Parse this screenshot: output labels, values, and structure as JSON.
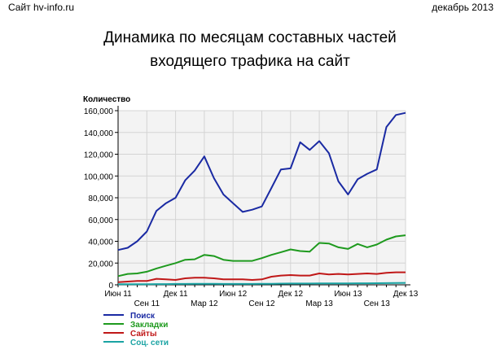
{
  "header": {
    "left": "Сайт hv-info.ru",
    "right": "декабрь 2013"
  },
  "title_lines": [
    "Динамика по месяцам составных частей",
    "входящего трафика на сайт"
  ],
  "chart_data": {
    "type": "line",
    "ylabel": "Количество",
    "ylim": [
      0,
      160000
    ],
    "yticks": [
      0,
      20000,
      40000,
      60000,
      80000,
      100000,
      120000,
      140000,
      160000
    ],
    "ytick_labels": [
      "0",
      "20,000",
      "40,000",
      "60,000",
      "80,000",
      "100,000",
      "120,000",
      "140,000",
      "160,000"
    ],
    "x": [
      "2011-06",
      "2011-07",
      "2011-08",
      "2011-09",
      "2011-10",
      "2011-11",
      "2011-12",
      "2012-01",
      "2012-02",
      "2012-03",
      "2012-04",
      "2012-05",
      "2012-06",
      "2012-07",
      "2012-08",
      "2012-09",
      "2012-10",
      "2012-11",
      "2012-12",
      "2013-01",
      "2013-02",
      "2013-03",
      "2013-04",
      "2013-05",
      "2013-06",
      "2013-07",
      "2013-08",
      "2013-09",
      "2013-10",
      "2013-11",
      "2013-12"
    ],
    "xtick_labels": [
      {
        "label": "Июн 11",
        "row": 0,
        "at": 0
      },
      {
        "label": "Сен 11",
        "row": 1,
        "at": 3
      },
      {
        "label": "Дек 11",
        "row": 0,
        "at": 6
      },
      {
        "label": "Мар 12",
        "row": 1,
        "at": 9
      },
      {
        "label": "Июн 12",
        "row": 0,
        "at": 12
      },
      {
        "label": "Сен 12",
        "row": 1,
        "at": 15
      },
      {
        "label": "Дек 12",
        "row": 0,
        "at": 18
      },
      {
        "label": "Мар 13",
        "row": 1,
        "at": 21
      },
      {
        "label": "Июн 13",
        "row": 0,
        "at": 24
      },
      {
        "label": "Сен 13",
        "row": 1,
        "at": 27
      },
      {
        "label": "Дек 13",
        "row": 0,
        "at": 30
      }
    ],
    "grid": true,
    "legend_position": "bottom-left",
    "series": [
      {
        "name": "Поиск",
        "color": "#1a2aa3",
        "values": [
          32000,
          34000,
          40000,
          49000,
          68000,
          75000,
          80000,
          96000,
          105000,
          118000,
          98000,
          83000,
          75000,
          67000,
          69000,
          72000,
          89000,
          106000,
          107000,
          131000,
          124000,
          132000,
          121000,
          95000,
          83000,
          97000,
          102000,
          106000,
          145000,
          156000,
          158000
        ]
      },
      {
        "name": "Закладки",
        "color": "#1e9a1e",
        "values": [
          8000,
          10000,
          10500,
          12000,
          15000,
          17500,
          20000,
          23000,
          23500,
          27500,
          26500,
          23000,
          22000,
          22000,
          22000,
          24500,
          27500,
          30000,
          32500,
          31000,
          30500,
          38500,
          38000,
          34500,
          33000,
          37500,
          34500,
          37000,
          41500,
          44500,
          45500
        ]
      },
      {
        "name": "Сайты",
        "color": "#c01818",
        "values": [
          2500,
          3000,
          3500,
          3500,
          5500,
          5000,
          4500,
          6000,
          6500,
          6500,
          6000,
          5000,
          5000,
          5000,
          4500,
          5000,
          7500,
          8500,
          9000,
          8500,
          8500,
          10500,
          9500,
          10000,
          9500,
          10000,
          10500,
          10000,
          11000,
          11500,
          11500
        ]
      },
      {
        "name": "Соц. сети",
        "color": "#1aa3a3",
        "values": [
          500,
          500,
          500,
          600,
          700,
          700,
          800,
          800,
          900,
          900,
          900,
          800,
          800,
          800,
          800,
          900,
          1000,
          1100,
          1200,
          1200,
          1200,
          1300,
          1300,
          1300,
          1300,
          1400,
          1400,
          1500,
          1600,
          1700,
          1800
        ]
      }
    ]
  }
}
